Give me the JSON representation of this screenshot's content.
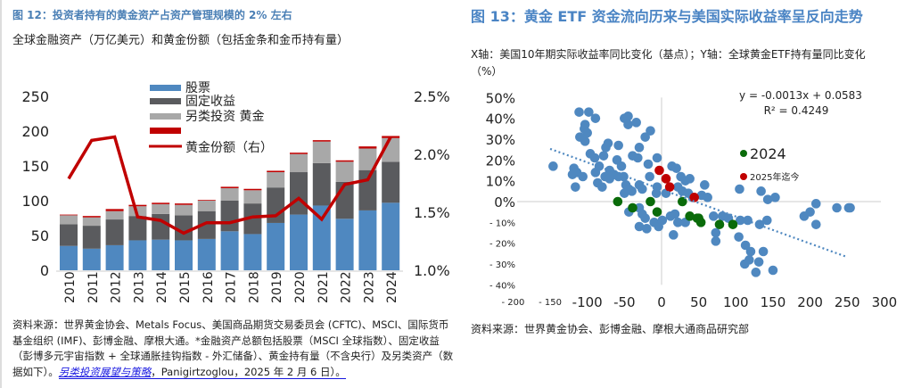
{
  "left": {
    "title": "图 12：投资者持有的黄金资产占资产管理规模的 2% 左右",
    "subtitle": "全球金融资产（万亿美元）和黄金份额（包括金条和金币持有量）",
    "source_prefix": "资料来源：世界黄金协会、Metals Focus、美国商品期货交易委员会 (CFTC)、MSCI、国际货币基金组织 (IMF)、彭博金融、摩根大通。*金融资产总额包括股票（MSCI 全球指数）、固定收益（彭博多元宇宙指数 + 全球通胀挂钩指数 - 外汇储备）、黄金持有量（不含央行）及另类资产（数据如下）。",
    "source_link": "另类投资展望与策略",
    "source_suffix": "，Panigirtzoglou，2025 年 2 月 6 日）。"
  },
  "right": {
    "title": "图 13：黄金 ETF 资金流向历来与美国实际收益率呈反向走势",
    "subtitle": "X轴：美国10年期实际收益率同比变化（基点）；Y轴：全球黄金ETF持有量同比变化（%）",
    "source": "资料来源：世界黄金协会、彭博金融、摩根大通商品研究部"
  },
  "chart_data": [
    {
      "type": "bar",
      "stacked": true,
      "categories": [
        "2010",
        "2011",
        "2012",
        "2013",
        "2014",
        "2015",
        "2016",
        "2017",
        "2018",
        "2019",
        "2020",
        "2021",
        "2022",
        "2023",
        "2024"
      ],
      "series": [
        {
          "name": "股票",
          "color": "#4f88c0",
          "values": [
            35,
            31,
            36,
            43,
            44,
            43,
            45,
            56,
            52,
            68,
            80,
            93,
            74,
            86,
            97
          ]
        },
        {
          "name": "固定收益",
          "color": "#5a5b5e",
          "values": [
            31,
            33,
            37,
            35,
            37,
            36,
            40,
            44,
            44,
            51,
            61,
            61,
            53,
            58,
            59
          ]
        },
        {
          "name": "另类投资",
          "color": "#a8a8a8",
          "values": [
            13,
            12,
            12,
            14,
            14,
            15,
            15,
            18,
            19,
            22,
            26,
            31,
            29,
            31,
            34
          ]
        },
        {
          "name": "黄金",
          "color": "#c00000",
          "values": [
            1,
            2,
            3,
            2,
            2,
            2,
            1,
            2,
            2,
            2,
            2,
            2,
            2,
            3,
            3
          ]
        }
      ],
      "line": {
        "name": "黄金份额（右）",
        "color": "#c00000",
        "values": [
          1.79,
          2.12,
          2.15,
          1.46,
          1.43,
          1.32,
          1.41,
          1.41,
          1.46,
          1.47,
          1.62,
          1.44,
          1.74,
          1.78,
          2.15
        ]
      },
      "ylim": [
        0,
        250
      ],
      "yticks": [
        "0",
        "50",
        "100",
        "150",
        "200",
        "250"
      ],
      "y2lim": [
        1.0,
        2.5
      ],
      "y2ticks": [
        "1.0%",
        "1.5%",
        "2.0%",
        "2.5%"
      ],
      "legend": "top-center"
    },
    {
      "type": "scatter",
      "xlim": [
        -200,
        300
      ],
      "ylim": [
        -40,
        50
      ],
      "xticks": [
        {
          "v": -200,
          "t": "- 200",
          "small": true
        },
        {
          "v": -150,
          "t": "- 150",
          "small": true
        },
        {
          "v": -100,
          "t": "-100"
        },
        {
          "v": -50,
          "t": "-50"
        },
        {
          "v": 0,
          "t": "0"
        },
        {
          "v": 50,
          "t": "50"
        },
        {
          "v": 100,
          "t": "100"
        },
        {
          "v": 150,
          "t": "150"
        },
        {
          "v": 200,
          "t": "200"
        },
        {
          "v": 250,
          "t": "250"
        },
        {
          "v": 300,
          "t": "300"
        }
      ],
      "yticks": [
        {
          "v": 50,
          "t": "50%"
        },
        {
          "v": 40,
          "t": "40%"
        },
        {
          "v": 30,
          "t": "30%"
        },
        {
          "v": 20,
          "t": "20%"
        },
        {
          "v": 10,
          "t": "10%"
        },
        {
          "v": 0,
          "t": "0%"
        },
        {
          "v": -10,
          "t": "- 10%",
          "small": true
        },
        {
          "v": -20,
          "t": "- 20%",
          "small": true
        },
        {
          "v": -30,
          "t": "- 30%",
          "small": true
        },
        {
          "v": -40,
          "t": "- 40%",
          "small": true
        }
      ],
      "trendline": {
        "slope": -0.13,
        "intercept": 5.83,
        "x_range": [
          -150,
          250
        ],
        "equation": "y = -0.0013x + 0.0583",
        "r2": "R² = 0.4249",
        "color": "#4f88c0"
      },
      "series": [
        {
          "name": "",
          "color": "#4f88c0",
          "points": [
            [
              -111,
              43
            ],
            [
              -98,
              43
            ],
            [
              -89,
              40
            ],
            [
              -103,
              37
            ],
            [
              -104,
              35
            ],
            [
              -100,
              33
            ],
            [
              -110,
              31
            ],
            [
              -103,
              29
            ],
            [
              -50,
              40
            ],
            [
              -45,
              41
            ],
            [
              -45,
              37
            ],
            [
              -34,
              38
            ],
            [
              -15,
              34
            ],
            [
              -22,
              31
            ],
            [
              -72,
              28
            ],
            [
              -75,
              26
            ],
            [
              -58,
              27
            ],
            [
              -30,
              26
            ],
            [
              -96,
              23
            ],
            [
              -90,
              21
            ],
            [
              -78,
              22
            ],
            [
              -39,
              22
            ],
            [
              -32,
              21
            ],
            [
              -6,
              21
            ],
            [
              -146,
              17
            ],
            [
              -118,
              16
            ],
            [
              -114,
              14
            ],
            [
              -120,
              13
            ],
            [
              -106,
              12
            ],
            [
              -89,
              14
            ],
            [
              -84,
              17
            ],
            [
              -60,
              20
            ],
            [
              -54,
              17
            ],
            [
              -70,
              15
            ],
            [
              -64,
              13
            ],
            [
              -76,
              12
            ],
            [
              -70,
              11
            ],
            [
              -58,
              12
            ],
            [
              -51,
              12
            ],
            [
              -86,
              9
            ],
            [
              -80,
              7
            ],
            [
              -116,
              7
            ],
            [
              -48,
              8
            ],
            [
              -44,
              6
            ],
            [
              -50,
              4
            ],
            [
              -40,
              5
            ],
            [
              -30,
              8
            ],
            [
              -26,
              6
            ],
            [
              -18,
              18
            ],
            [
              -16,
              12
            ],
            [
              -6,
              7
            ],
            [
              -7,
              4
            ],
            [
              6,
              4
            ],
            [
              14,
              17
            ],
            [
              20,
              16
            ],
            [
              26,
              12
            ],
            [
              32,
              10
            ],
            [
              38,
              11
            ],
            [
              22,
              7
            ],
            [
              28,
              5
            ],
            [
              36,
              4
            ],
            [
              42,
              2
            ],
            [
              54,
              3
            ],
            [
              62,
              2
            ],
            [
              58,
              8
            ],
            [
              105,
              6
            ],
            [
              134,
              5
            ],
            [
              143,
              1
            ],
            [
              153,
              2
            ],
            [
              208,
              -1
            ],
            [
              200,
              -5
            ],
            [
              192,
              -7
            ],
            [
              208,
              -11
            ],
            [
              236,
              -3
            ],
            [
              252,
              -3
            ],
            [
              254,
              -3
            ],
            [
              -44,
              -5
            ],
            [
              -30,
              -3
            ],
            [
              -26,
              -6
            ],
            [
              -22,
              -8
            ],
            [
              -30,
              -12
            ],
            [
              -20,
              -13
            ],
            [
              -10,
              -10
            ],
            [
              -4,
              -12
            ],
            [
              1,
              -9
            ],
            [
              12,
              -7
            ],
            [
              18,
              -6
            ],
            [
              22,
              -10
            ],
            [
              16,
              -16
            ],
            [
              32,
              -10
            ],
            [
              70,
              -7
            ],
            [
              82,
              -7
            ],
            [
              90,
              -8
            ],
            [
              106,
              -9
            ],
            [
              116,
              -9
            ],
            [
              132,
              -11
            ],
            [
              142,
              -9
            ],
            [
              73,
              -15
            ],
            [
              73,
              -19
            ],
            [
              104,
              -17
            ],
            [
              113,
              -21
            ],
            [
              120,
              -24
            ],
            [
              118,
              -28
            ],
            [
              112,
              -30
            ],
            [
              137,
              -24
            ],
            [
              131,
              -29
            ],
            [
              127,
              -34
            ],
            [
              150,
              -33
            ]
          ]
        },
        {
          "name": "2024",
          "color": "#0a6b0a",
          "points": [
            [
              -59,
              0
            ],
            [
              -39,
              -3
            ],
            [
              -15,
              0
            ],
            [
              -6,
              -5
            ],
            [
              28,
              0
            ],
            [
              38,
              -7
            ],
            [
              48,
              -8
            ],
            [
              50,
              -8
            ],
            [
              53,
              -10
            ],
            [
              78,
              -11
            ],
            [
              96,
              -11
            ]
          ]
        },
        {
          "name": "2025年迄今",
          "color": "#c00000",
          "points": [
            [
              -3,
              15
            ],
            [
              6,
              11
            ],
            [
              11,
              7
            ],
            [
              44,
              2
            ]
          ]
        }
      ],
      "legend": "right"
    }
  ]
}
